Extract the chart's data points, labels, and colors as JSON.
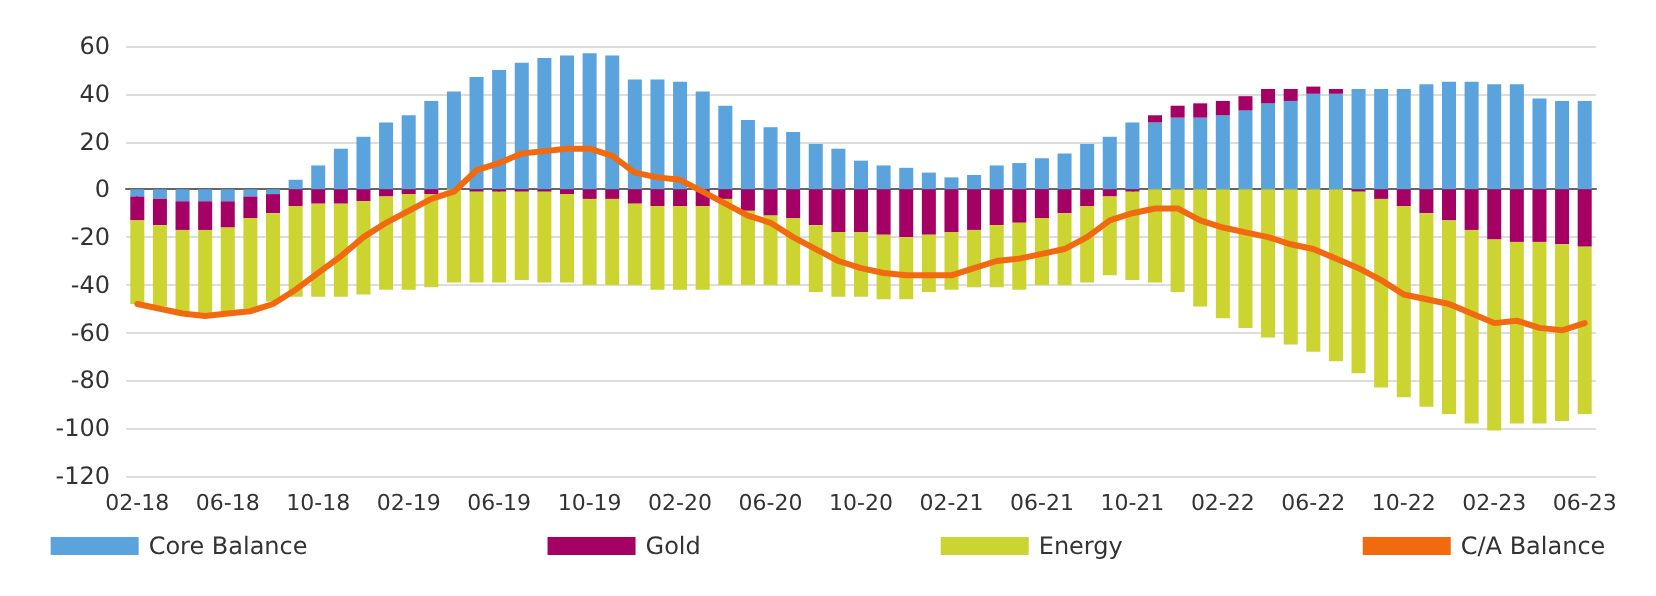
{
  "chart_data": {
    "type": "bar",
    "stacked": true,
    "categories": [
      "02-18",
      null,
      null,
      null,
      "06-18",
      null,
      null,
      null,
      "10-18",
      null,
      null,
      null,
      "02-19",
      null,
      null,
      null,
      "06-19",
      null,
      null,
      null,
      "10-19",
      null,
      null,
      null,
      "02-20",
      null,
      null,
      null,
      "06-20",
      null,
      null,
      null,
      "10-20",
      null,
      null,
      null,
      "02-21",
      null,
      null,
      null,
      "06-21",
      null,
      null,
      null,
      "10-21",
      null,
      null,
      null,
      "02-22",
      null,
      null,
      null,
      "06-22",
      null,
      null,
      null,
      "10-22",
      null,
      null,
      null,
      "02-23",
      null,
      null,
      null,
      "06-23"
    ],
    "series": [
      {
        "name": "Core Balance",
        "color": "#5ba3dc",
        "values": [
          -3,
          -4,
          -5,
          -5,
          -5,
          -3,
          -2,
          4,
          10,
          17,
          22,
          28,
          31,
          37,
          41,
          47,
          50,
          53,
          55,
          56,
          57,
          56,
          46,
          46,
          45,
          41,
          35,
          29,
          26,
          24,
          19,
          17,
          12,
          10,
          9,
          7,
          5,
          6,
          10,
          11,
          13,
          15,
          19,
          22,
          28,
          28,
          30,
          30,
          31,
          33,
          36,
          37,
          40,
          40,
          42,
          42,
          42,
          44,
          45,
          45,
          44,
          44,
          38,
          37,
          37
        ]
      },
      {
        "name": "Gold",
        "color": "#a50064",
        "values": [
          -10,
          -11,
          -12,
          -12,
          -11,
          -9,
          -8,
          -7,
          -6,
          -6,
          -5,
          -3,
          -2,
          -2,
          null,
          -1,
          -1,
          -1,
          -1,
          -2,
          -4,
          -4,
          -6,
          -7,
          -7,
          -7,
          -4,
          -9,
          -11,
          -12,
          -15,
          -18,
          -18,
          -19,
          -20,
          -19,
          -18,
          -17,
          -15,
          -14,
          -12,
          -10,
          -7,
          -3,
          -1,
          3,
          5,
          6,
          6,
          6,
          6,
          5,
          3,
          2,
          -1,
          -4,
          -7,
          -10,
          -13,
          -17,
          -21,
          -22,
          -22,
          -23,
          -24
        ]
      },
      {
        "name": "Energy",
        "color": "#ccd431",
        "values": [
          -35,
          -34,
          -34,
          -35,
          -36,
          -38,
          -37,
          -38,
          -39,
          -39,
          -39,
          -39,
          -40,
          -39,
          -39,
          -38,
          -38,
          -37,
          -38,
          -37,
          -36,
          -36,
          -34,
          -35,
          -35,
          -35,
          -36,
          -31,
          -29,
          -28,
          -28,
          -27,
          -27,
          -27,
          -26,
          -24,
          -24,
          -24,
          -26,
          -28,
          -28,
          -30,
          -32,
          -33,
          -37,
          -39,
          -43,
          -49,
          -54,
          -58,
          -62,
          -65,
          -68,
          -72,
          -76,
          -79,
          -80,
          -81,
          -81,
          -81,
          -80,
          -76,
          -76,
          -74,
          -70
        ]
      },
      {
        "name": "C/A Balance",
        "type": "line",
        "color": "#f26a10",
        "values": [
          -48,
          -50,
          -52,
          -53,
          -52,
          -51,
          -48,
          -42,
          -35,
          -28,
          -20,
          -14,
          -9,
          -4,
          -1,
          8,
          11,
          15,
          16,
          17,
          17,
          14,
          7,
          5,
          4,
          -1,
          -6,
          -11,
          -14,
          -20,
          -25,
          -30,
          -33,
          -35,
          -36,
          -36,
          -36,
          -33,
          -30,
          -29,
          -27,
          -25,
          -20,
          -13,
          -10,
          -8,
          -8,
          -13,
          -16,
          -18,
          -20,
          -23,
          -25,
          -29,
          -33,
          -38,
          -44,
          -46,
          -48,
          -52,
          -56,
          -55,
          -58,
          -59,
          -56
        ]
      }
    ],
    "ylim": [
      -120,
      60
    ],
    "yticks": [
      -120,
      -100,
      -80,
      -60,
      -40,
      -20,
      0,
      20,
      40,
      60
    ],
    "grid": "y",
    "legend": "bottom",
    "marker": "none",
    "line_style": "solid"
  }
}
